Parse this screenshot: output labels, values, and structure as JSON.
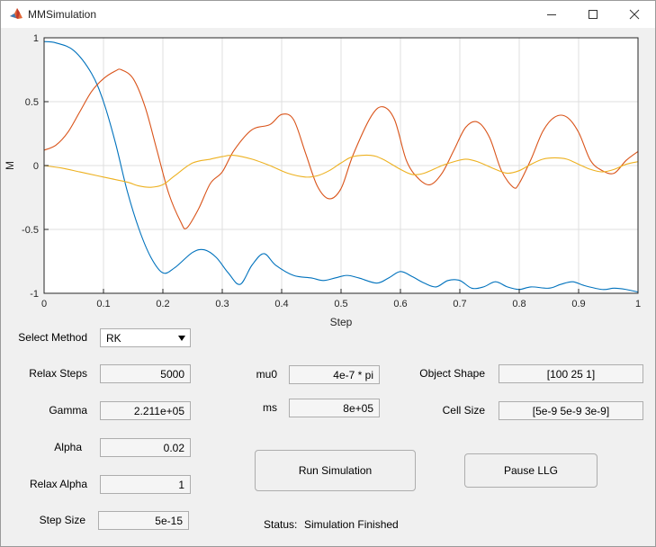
{
  "window": {
    "title": "MMSimulation"
  },
  "chart_data": {
    "type": "line",
    "xlabel": "Step",
    "ylabel": "M",
    "xlim": [
      0,
      1
    ],
    "ylim": [
      -1,
      1
    ],
    "x_ticks": [
      "0",
      "0.1",
      "0.2",
      "0.3",
      "0.4",
      "0.5",
      "0.6",
      "0.7",
      "0.8",
      "0.9",
      "1"
    ],
    "y_ticks": [
      "1",
      "0.5",
      "0",
      "-0.5",
      "-1"
    ],
    "grid": true,
    "series": [
      {
        "color": "#0072BD",
        "x": [
          0,
          0.02,
          0.05,
          0.08,
          0.1,
          0.12,
          0.14,
          0.16,
          0.18,
          0.2,
          0.22,
          0.25,
          0.27,
          0.29,
          0.31,
          0.33,
          0.35,
          0.37,
          0.39,
          0.42,
          0.45,
          0.47,
          0.49,
          0.51,
          0.53,
          0.56,
          0.58,
          0.6,
          0.62,
          0.64,
          0.66,
          0.68,
          0.7,
          0.72,
          0.74,
          0.76,
          0.78,
          0.8,
          0.82,
          0.85,
          0.87,
          0.89,
          0.91,
          0.94,
          0.96,
          0.98,
          1
        ],
        "y": [
          0.97,
          0.96,
          0.9,
          0.72,
          0.5,
          0.18,
          -0.2,
          -0.5,
          -0.72,
          -0.84,
          -0.8,
          -0.68,
          -0.66,
          -0.72,
          -0.84,
          -0.93,
          -0.78,
          -0.69,
          -0.78,
          -0.86,
          -0.88,
          -0.9,
          -0.88,
          -0.86,
          -0.88,
          -0.92,
          -0.88,
          -0.83,
          -0.87,
          -0.92,
          -0.95,
          -0.9,
          -0.9,
          -0.96,
          -0.95,
          -0.91,
          -0.95,
          -0.97,
          -0.95,
          -0.96,
          -0.93,
          -0.91,
          -0.94,
          -0.97,
          -0.96,
          -0.97,
          -0.99
        ]
      },
      {
        "color": "#D95319",
        "x": [
          0,
          0.02,
          0.04,
          0.06,
          0.08,
          0.1,
          0.12,
          0.13,
          0.15,
          0.17,
          0.19,
          0.21,
          0.23,
          0.24,
          0.26,
          0.28,
          0.3,
          0.32,
          0.35,
          0.38,
          0.4,
          0.42,
          0.44,
          0.46,
          0.48,
          0.5,
          0.52,
          0.55,
          0.57,
          0.59,
          0.61,
          0.63,
          0.65,
          0.67,
          0.69,
          0.71,
          0.73,
          0.75,
          0.77,
          0.79,
          0.8,
          0.82,
          0.84,
          0.86,
          0.88,
          0.9,
          0.92,
          0.94,
          0.96,
          0.98,
          1
        ],
        "y": [
          0.12,
          0.16,
          0.26,
          0.42,
          0.58,
          0.68,
          0.74,
          0.75,
          0.68,
          0.46,
          0.12,
          -0.22,
          -0.44,
          -0.49,
          -0.34,
          -0.14,
          -0.05,
          0.12,
          0.28,
          0.32,
          0.4,
          0.36,
          0.1,
          -0.16,
          -0.26,
          -0.18,
          0.08,
          0.38,
          0.46,
          0.36,
          0.04,
          -0.1,
          -0.15,
          -0.06,
          0.12,
          0.3,
          0.34,
          0.22,
          -0.04,
          -0.17,
          -0.14,
          0.05,
          0.27,
          0.38,
          0.38,
          0.26,
          0.04,
          -0.04,
          -0.06,
          0.04,
          0.11
        ]
      },
      {
        "color": "#EDB120",
        "x": [
          0,
          0.03,
          0.06,
          0.09,
          0.11,
          0.14,
          0.16,
          0.18,
          0.2,
          0.22,
          0.25,
          0.28,
          0.3,
          0.32,
          0.35,
          0.38,
          0.41,
          0.44,
          0.46,
          0.48,
          0.5,
          0.52,
          0.55,
          0.57,
          0.6,
          0.62,
          0.64,
          0.67,
          0.69,
          0.71,
          0.73,
          0.76,
          0.78,
          0.8,
          0.82,
          0.84,
          0.86,
          0.88,
          0.9,
          0.92,
          0.94,
          0.96,
          0.98,
          1
        ],
        "y": [
          0,
          -0.02,
          -0.05,
          -0.08,
          -0.1,
          -0.13,
          -0.16,
          -0.17,
          -0.15,
          -0.08,
          0.02,
          0.05,
          0.07,
          0.08,
          0.05,
          0,
          -0.06,
          -0.09,
          -0.08,
          -0.04,
          0.02,
          0.07,
          0.08,
          0.05,
          -0.03,
          -0.07,
          -0.06,
          0,
          0.03,
          0.05,
          0.03,
          -0.03,
          -0.06,
          -0.04,
          0.01,
          0.05,
          0.06,
          0.05,
          0.01,
          -0.03,
          -0.05,
          -0.03,
          0.01,
          0.03
        ]
      }
    ]
  },
  "controls": {
    "select_method_label": "Select Method",
    "method_value": "RK",
    "relax_steps_label": "Relax Steps",
    "relax_steps_value": "5000",
    "gamma_label": "Gamma",
    "gamma_value": "2.211e+05",
    "alpha_label": "Alpha",
    "alpha_value": "0.02",
    "relax_alpha_label": "Relax Alpha",
    "relax_alpha_value": "1",
    "step_size_label": "Step Size",
    "step_size_value": "5e-15",
    "mu0_label": "mu0",
    "mu0_value": "4e-7 * pi",
    "ms_label": "ms",
    "ms_value": "8e+05",
    "object_shape_label": "Object Shape",
    "object_shape_value": "[100 25 1]",
    "cell_size_label": "Cell Size",
    "cell_size_value": "[5e-9 5e-9 3e-9]",
    "run_button": "Run Simulation",
    "pause_button": "Pause LLG",
    "status_label": "Status:",
    "status_value": "Simulation Finished"
  }
}
